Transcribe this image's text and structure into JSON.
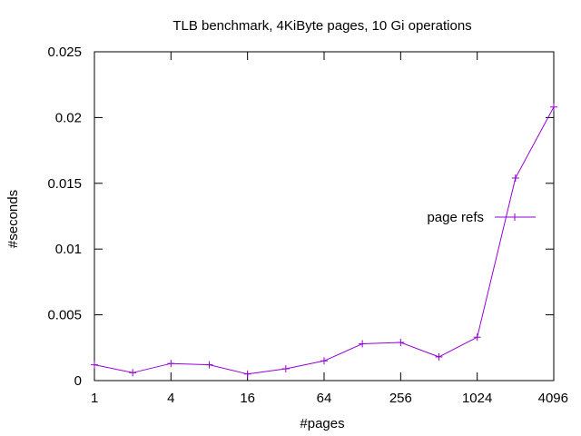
{
  "chart_data": {
    "type": "line",
    "title": "TLB benchmark, 4KiByte pages, 10 Gi operations",
    "xlabel": "#pages",
    "ylabel": "#seconds",
    "x_scale": "log2",
    "xlim": [
      1,
      4096
    ],
    "ylim": [
      0,
      0.025
    ],
    "x_ticks": [
      1,
      4,
      16,
      64,
      256,
      1024,
      4096
    ],
    "x_tick_labels": [
      "1",
      "4",
      "16",
      "64",
      "256",
      "1024",
      "4096"
    ],
    "y_ticks": [
      0,
      0.005,
      0.01,
      0.015,
      0.02,
      0.025
    ],
    "y_tick_labels": [
      "0",
      "0.005",
      "0.01",
      "0.015",
      "0.02",
      "0.025"
    ],
    "grid": false,
    "legend_position": "right",
    "series": [
      {
        "name": "page refs",
        "color": "#9400d3",
        "x": [
          1,
          2,
          4,
          8,
          16,
          32,
          64,
          128,
          256,
          512,
          1024,
          2048,
          4096
        ],
        "y": [
          0.0012,
          0.0006,
          0.0013,
          0.0012,
          0.0005,
          0.0009,
          0.0015,
          0.0028,
          0.0029,
          0.0018,
          0.0033,
          0.0154,
          0.0208
        ]
      }
    ]
  }
}
